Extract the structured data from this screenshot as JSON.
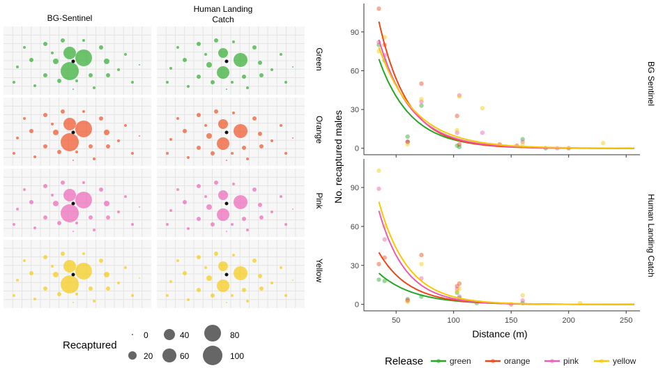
{
  "colors": {
    "green": "#22a822",
    "orange": "#f04515",
    "pink": "#ee5ab4",
    "yellow": "#f8c800",
    "grid": "#e4e4e4",
    "panel_bg": "#f7f7f7",
    "text": "#222222",
    "axis": "#333333"
  },
  "left_panel": {
    "columns": [
      "BG-Sentinel",
      "Human Landing\nCatch"
    ],
    "rows": [
      "Green",
      "Orange",
      "Pink",
      "Yellow"
    ],
    "legend": {
      "title": "Recaptured",
      "labels": [
        "0",
        "20",
        "40",
        "60",
        "80",
        "100"
      ]
    }
  },
  "chart_data": {
    "type": "scatter",
    "title": "",
    "xlabel": "Distance (m)",
    "ylabel": "No. recaptured males",
    "xlim": [
      22,
      262
    ],
    "ylim": [
      -5,
      112
    ],
    "xticks": [
      50,
      100,
      150,
      200,
      250
    ],
    "yticks": [
      0,
      30,
      60,
      90
    ],
    "facets": [
      "BG Sentinel",
      "Human Landing Catch"
    ],
    "legend": {
      "title": "Release",
      "entries": [
        "green",
        "orange",
        "pink",
        "yellow"
      ]
    },
    "series": [
      {
        "facet": "BG Sentinel",
        "name": "green",
        "curve": {
          "a": 69,
          "b": 0.036,
          "x0": 35
        },
        "points": [
          [
            35,
            80
          ],
          [
            40,
            68
          ],
          [
            60,
            9
          ],
          [
            60,
            5
          ],
          [
            72,
            33
          ],
          [
            103,
            2
          ],
          [
            105,
            1
          ],
          [
            160,
            7
          ],
          [
            180,
            0
          ]
        ]
      },
      {
        "facet": "BG Sentinel",
        "name": "orange",
        "curve": {
          "a": 98,
          "b": 0.04,
          "x0": 35
        },
        "points": [
          [
            35,
            108
          ],
          [
            40,
            80
          ],
          [
            60,
            5
          ],
          [
            72,
            50
          ],
          [
            103,
            25
          ],
          [
            105,
            3
          ],
          [
            140,
            3
          ],
          [
            155,
            2
          ],
          [
            200,
            0
          ]
        ]
      },
      {
        "facet": "BG Sentinel",
        "name": "pink",
        "curve": {
          "a": 84,
          "b": 0.036,
          "x0": 35
        },
        "points": [
          [
            35,
            82
          ],
          [
            40,
            72
          ],
          [
            60,
            5
          ],
          [
            72,
            36
          ],
          [
            103,
            12
          ],
          [
            105,
            41
          ],
          [
            125,
            12
          ],
          [
            160,
            5
          ],
          [
            190,
            0
          ]
        ]
      },
      {
        "facet": "BG Sentinel",
        "name": "yellow",
        "curve": {
          "a": 78,
          "b": 0.032,
          "x0": 35
        },
        "points": [
          [
            35,
            75
          ],
          [
            40,
            86
          ],
          [
            60,
            3
          ],
          [
            72,
            38
          ],
          [
            103,
            14
          ],
          [
            105,
            40
          ],
          [
            125,
            31
          ],
          [
            160,
            3
          ],
          [
            230,
            4
          ]
        ]
      },
      {
        "facet": "Human Landing Catch",
        "name": "green",
        "curve": {
          "a": 24,
          "b": 0.033,
          "x0": 35
        },
        "points": [
          [
            35,
            19
          ],
          [
            40,
            18
          ],
          [
            60,
            4
          ],
          [
            72,
            6
          ],
          [
            103,
            9
          ],
          [
            105,
            5
          ],
          [
            120,
            1
          ],
          [
            160,
            1
          ]
        ]
      },
      {
        "facet": "Human Landing Catch",
        "name": "orange",
        "curve": {
          "a": 40,
          "b": 0.038,
          "x0": 35
        },
        "points": [
          [
            35,
            31
          ],
          [
            40,
            36
          ],
          [
            60,
            3
          ],
          [
            72,
            38
          ],
          [
            103,
            14
          ],
          [
            105,
            16
          ],
          [
            150,
            0
          ]
        ]
      },
      {
        "facet": "Human Landing Catch",
        "name": "pink",
        "curve": {
          "a": 72,
          "b": 0.043,
          "x0": 35
        },
        "points": [
          [
            35,
            89
          ],
          [
            40,
            50
          ],
          [
            60,
            3
          ],
          [
            72,
            20
          ],
          [
            103,
            12
          ],
          [
            105,
            6
          ],
          [
            160,
            3
          ]
        ]
      },
      {
        "facet": "Human Landing Catch",
        "name": "yellow",
        "curve": {
          "a": 79,
          "b": 0.04,
          "x0": 35
        },
        "points": [
          [
            35,
            103
          ],
          [
            40,
            60
          ],
          [
            60,
            2
          ],
          [
            72,
            31
          ],
          [
            103,
            10
          ],
          [
            105,
            12
          ],
          [
            160,
            7
          ],
          [
            210,
            1
          ]
        ]
      }
    ]
  }
}
